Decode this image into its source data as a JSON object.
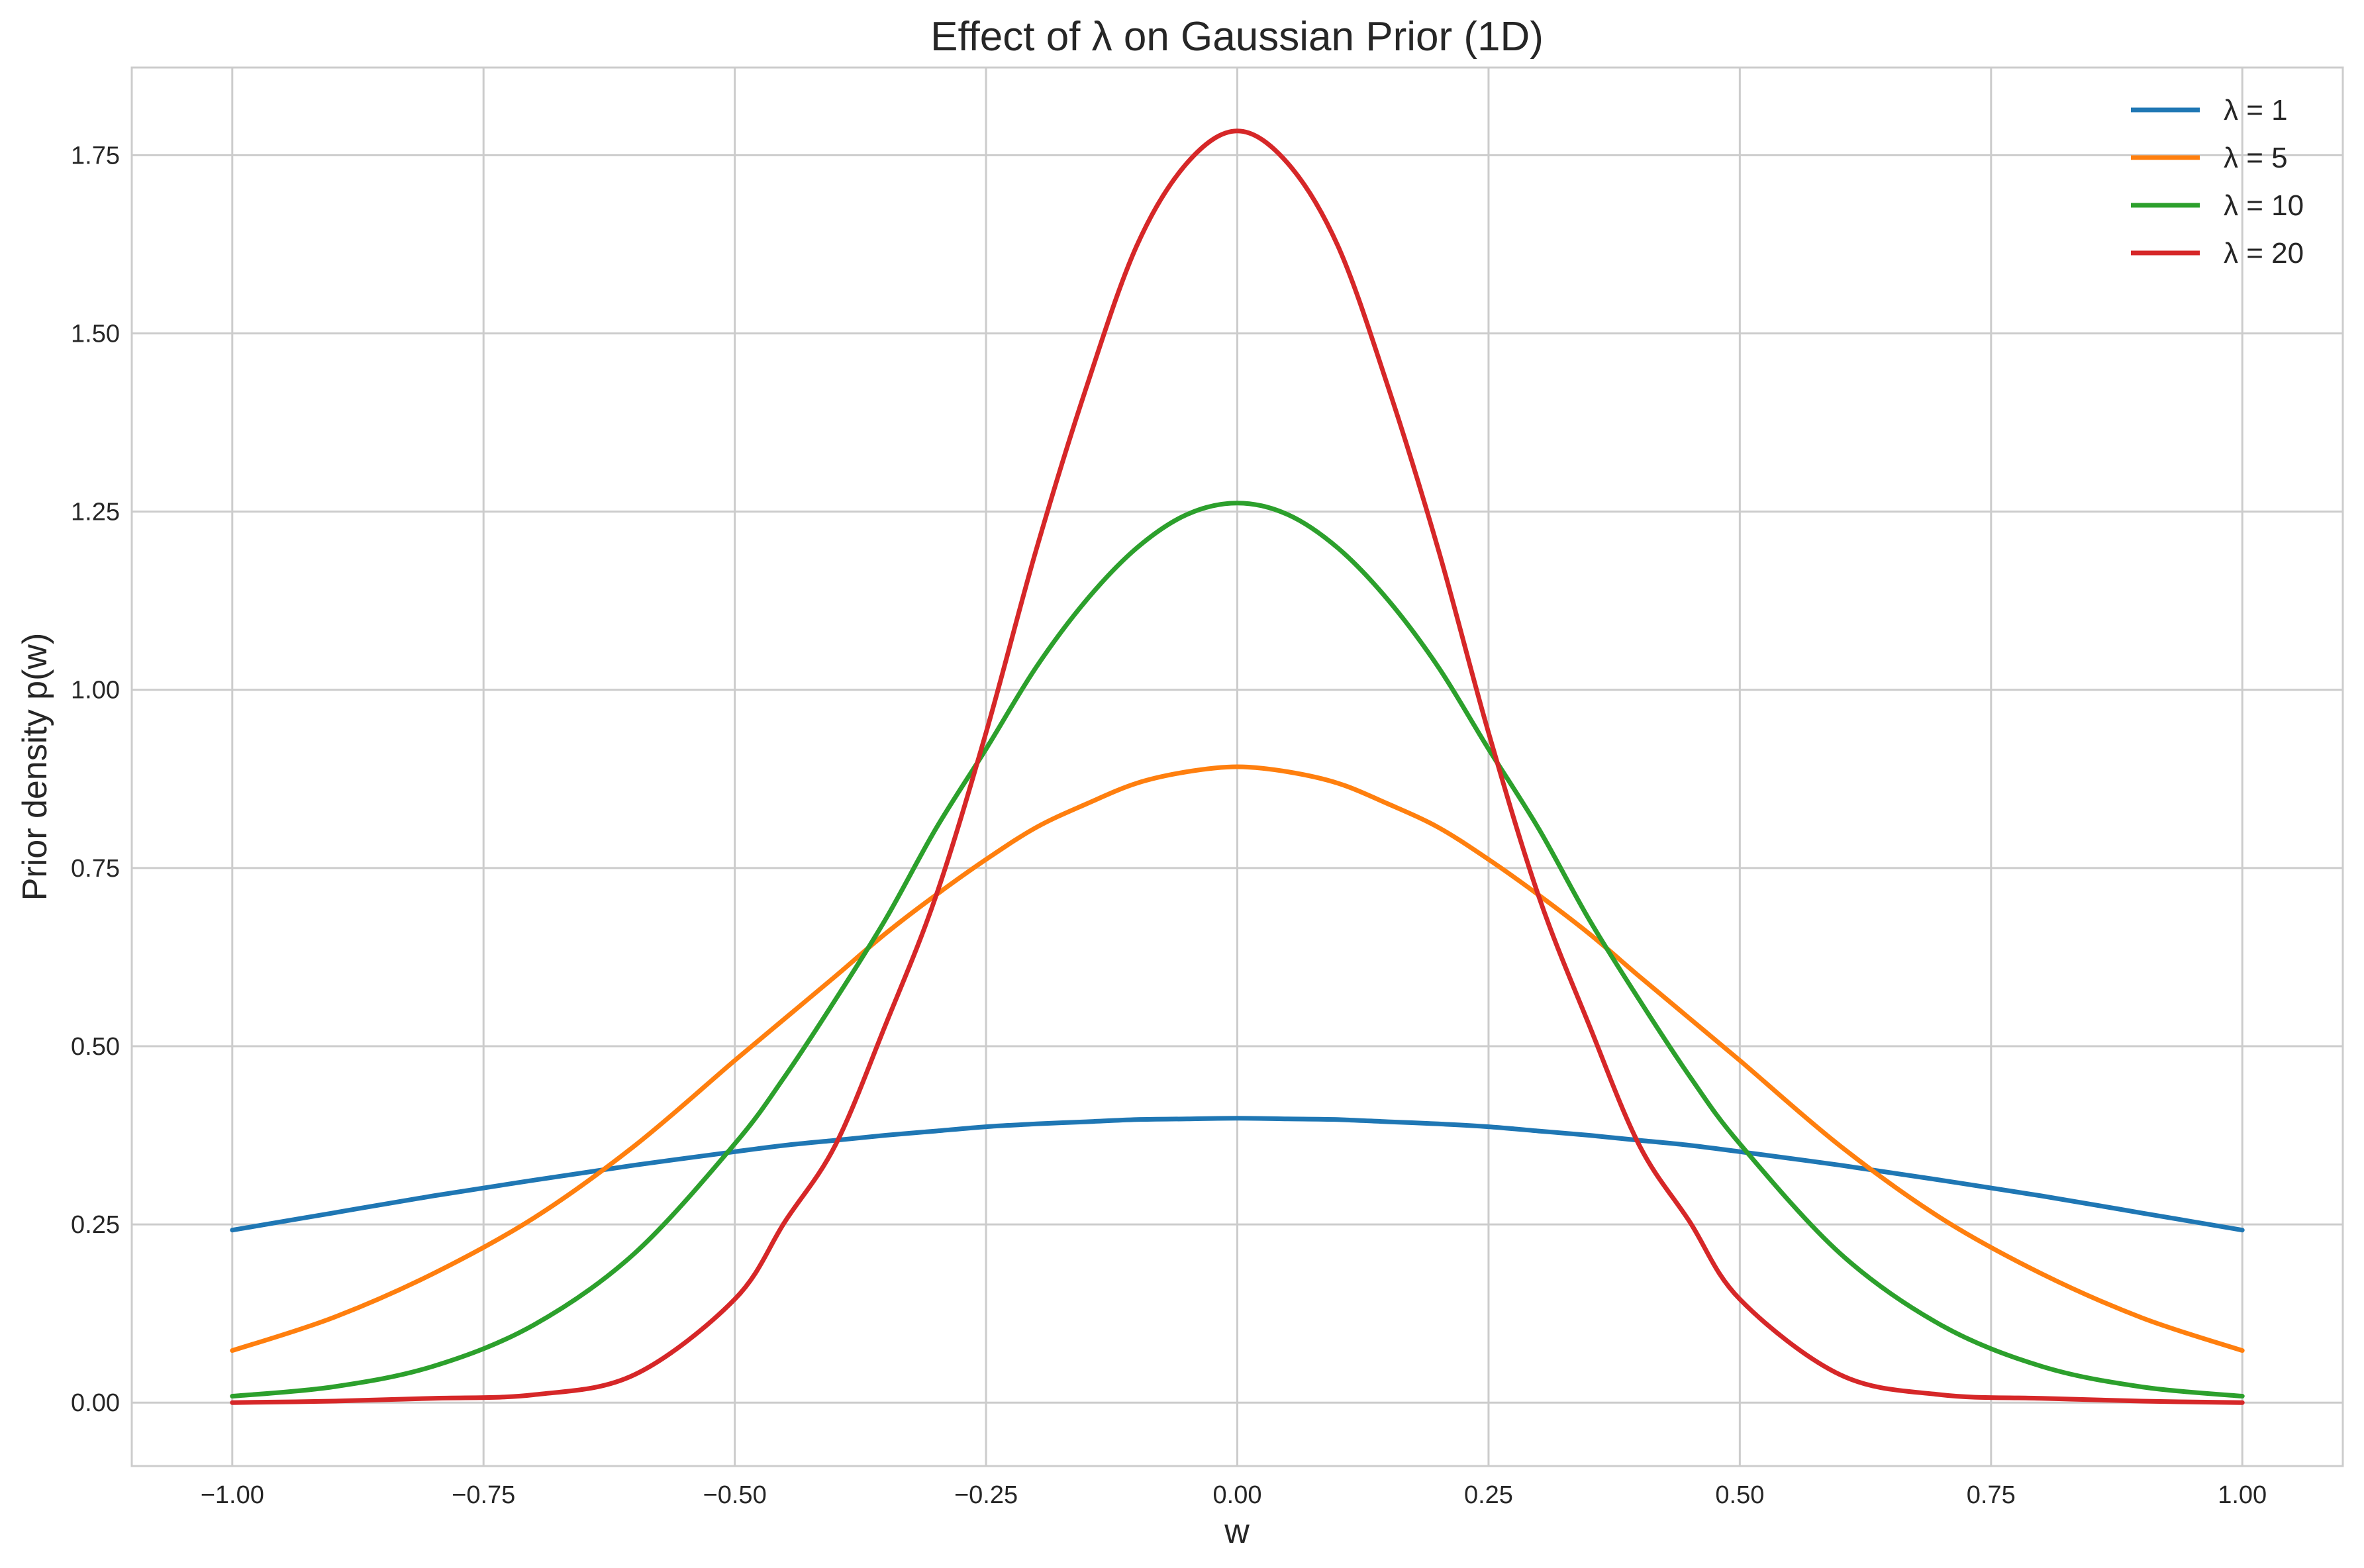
{
  "chart_data": {
    "type": "line",
    "title": "Effect of λ on Gaussian Prior (1D)",
    "xlabel": "w",
    "ylabel": "Prior density p(w)",
    "xlim": [
      -1.1,
      1.1
    ],
    "ylim": [
      -0.089,
      1.873
    ],
    "xticks": [
      -1.0,
      -0.75,
      -0.5,
      -0.25,
      0.0,
      0.25,
      0.5,
      0.75,
      1.0
    ],
    "xtick_labels": [
      "−1.00",
      "−0.75",
      "−0.50",
      "−0.25",
      "0.00",
      "0.25",
      "0.50",
      "0.75",
      "1.00"
    ],
    "yticks": [
      0.0,
      0.25,
      0.5,
      0.75,
      1.0,
      1.25,
      1.5,
      1.75
    ],
    "ytick_labels": [
      "0.00",
      "0.25",
      "0.50",
      "0.75",
      "1.00",
      "1.25",
      "1.50",
      "1.75"
    ],
    "grid": true,
    "legend_position": "top-right",
    "x": [
      -1.0,
      -0.9,
      -0.8,
      -0.7,
      -0.6,
      -0.5,
      -0.45,
      -0.4,
      -0.35,
      -0.3,
      -0.25,
      -0.2,
      -0.15,
      -0.1,
      -0.05,
      0.0,
      0.05,
      0.1,
      0.15,
      0.2,
      0.25,
      0.3,
      0.35,
      0.4,
      0.45,
      0.5,
      0.6,
      0.7,
      0.8,
      0.9,
      1.0
    ],
    "series": [
      {
        "name": "λ = 1",
        "color": "#1f77b4",
        "values": [
          0.242,
          0.266,
          0.29,
          0.312,
          0.333,
          0.352,
          0.361,
          0.368,
          0.375,
          0.381,
          0.387,
          0.391,
          0.394,
          0.397,
          0.398,
          0.399,
          0.398,
          0.397,
          0.394,
          0.391,
          0.387,
          0.381,
          0.375,
          0.368,
          0.361,
          0.352,
          0.333,
          0.312,
          0.29,
          0.266,
          0.242
        ]
      },
      {
        "name": "λ = 5",
        "color": "#ff7f0e",
        "values": [
          0.073,
          0.119,
          0.181,
          0.259,
          0.36,
          0.48,
          0.539,
          0.598,
          0.658,
          0.712,
          0.762,
          0.807,
          0.84,
          0.869,
          0.885,
          0.892,
          0.885,
          0.869,
          0.84,
          0.807,
          0.762,
          0.712,
          0.658,
          0.598,
          0.539,
          0.48,
          0.36,
          0.259,
          0.181,
          0.119,
          0.073
        ]
      },
      {
        "name": "λ = 10",
        "color": "#2ca02c",
        "values": [
          0.009,
          0.022,
          0.051,
          0.109,
          0.209,
          0.363,
          0.458,
          0.565,
          0.678,
          0.805,
          0.917,
          1.032,
          1.126,
          1.199,
          1.246,
          1.262,
          1.246,
          1.199,
          1.126,
          1.032,
          0.917,
          0.805,
          0.678,
          0.565,
          0.458,
          0.363,
          0.209,
          0.109,
          0.051,
          0.022,
          0.009
        ]
      },
      {
        "name": "λ = 20",
        "color": "#d62728",
        "values": [
          0.0,
          0.002,
          0.006,
          0.011,
          0.039,
          0.145,
          0.254,
          0.361,
          0.53,
          0.71,
          0.94,
          1.197,
          1.425,
          1.623,
          1.739,
          1.784,
          1.739,
          1.623,
          1.425,
          1.197,
          0.94,
          0.71,
          0.53,
          0.361,
          0.254,
          0.145,
          0.039,
          0.011,
          0.006,
          0.002,
          0.0
        ]
      }
    ]
  }
}
